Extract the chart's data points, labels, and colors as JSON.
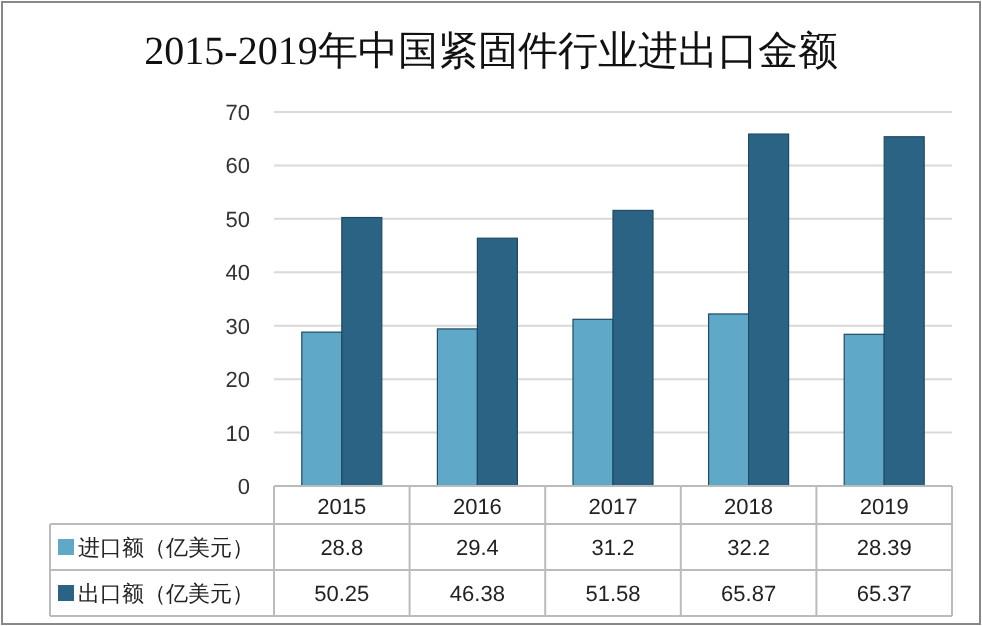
{
  "chart_data": {
    "type": "bar",
    "title": "2015-2019年中国紧固件行业进出口金额",
    "categories": [
      "2015",
      "2016",
      "2017",
      "2018",
      "2019"
    ],
    "series": [
      {
        "name": "进口额（亿美元）",
        "color": "#5fa8c8",
        "values": [
          28.8,
          29.4,
          31.2,
          32.2,
          28.39
        ]
      },
      {
        "name": "出口额（亿美元）",
        "color": "#2b6384",
        "values": [
          50.25,
          46.38,
          51.58,
          65.87,
          65.37
        ]
      }
    ],
    "ylim": [
      0,
      70
    ],
    "yticks": [
      0,
      10,
      20,
      30,
      40,
      50,
      60,
      70
    ],
    "grid": "y",
    "data_labels": true,
    "legend": "bottom"
  }
}
